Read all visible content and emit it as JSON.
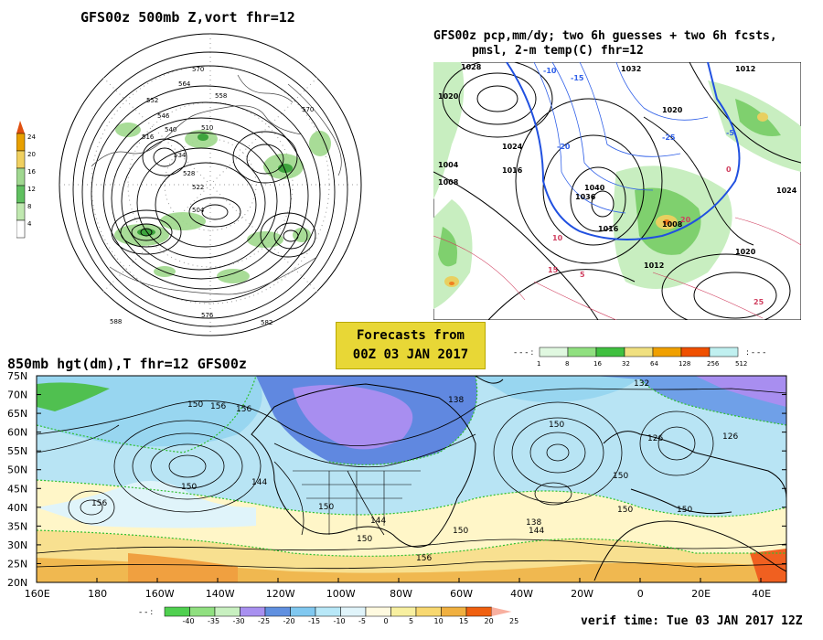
{
  "titles": {
    "nh_500mb": "GFS00z   500mb  Z,vort    fhr=12",
    "precip_line1": "GFS00z pcp,mm/dy; two 6h guesses + two 6h fcsts,",
    "precip_line2": "pmsl, 2-m temp(C)  fhr=12",
    "map_850": "850mb hgt(dm),T  fhr=12 GFS00z",
    "verif_time": "verif time: Tue 03 JAN 2017 12Z"
  },
  "forecast_box": {
    "line1": "Forecasts from",
    "line2": "00Z 03 JAN 2017"
  },
  "vort_scale": {
    "labels": [
      "24",
      "20",
      "16",
      "12",
      "8",
      "4"
    ],
    "colors": [
      "#e8a000",
      "#f0d060",
      "#a0d890",
      "#60c060",
      "#c0e8b0",
      "#ffffff"
    ]
  },
  "precip_scale": {
    "labels": [
      "1",
      "8",
      "16",
      "32",
      "64",
      "128",
      "256",
      "512"
    ],
    "colors": [
      "#e0f8e0",
      "#90e080",
      "#40c040",
      "#f0e080",
      "#f0a000",
      "#f05000",
      "#c0f0f0"
    ]
  },
  "temp_scale": {
    "labels": [
      "-40",
      "-35",
      "-30",
      "-25",
      "-20",
      "-15",
      "-10",
      "-5",
      "0",
      "5",
      "10",
      "15",
      "20",
      "25"
    ],
    "colors": [
      "#50d050",
      "#90e080",
      "#c8f0c0",
      "#a890f0",
      "#6090e0",
      "#80c8f0",
      "#b8e8f8",
      "#e0f4fa",
      "#fffae0",
      "#f8f0a0",
      "#f8d870",
      "#f0b040",
      "#f06010",
      "#f8b0a0"
    ]
  },
  "map_850": {
    "lat_labels": [
      "75N",
      "70N",
      "65N",
      "60N",
      "55N",
      "50N",
      "45N",
      "40N",
      "35N",
      "30N",
      "25N",
      "20N"
    ],
    "lon_labels": [
      "160E",
      "180",
      "160W",
      "140W",
      "120W",
      "100W",
      "80W",
      "60W",
      "40W",
      "20W",
      "0",
      "20E",
      "40E"
    ],
    "contour_labels": [
      "150",
      "150",
      "156",
      "144",
      "138",
      "150",
      "126",
      "126",
      "150",
      "150",
      "144",
      "150",
      "150",
      "138",
      "144",
      "150",
      "150",
      "156",
      "156",
      "132",
      "156"
    ]
  },
  "nh_labels": [
    "570",
    "564",
    "558",
    "552",
    "546",
    "540",
    "534",
    "528",
    "522",
    "516",
    "510",
    "504",
    "570",
    "576",
    "588",
    "582"
  ],
  "pcp_labels": [
    "1028",
    "1020",
    "1024",
    "1004",
    "1008",
    "1016",
    "1012",
    "1032",
    "1040",
    "1036",
    "1020",
    "1016",
    "1008",
    "1024",
    "1020",
    "1012",
    "-10",
    "-15",
    "-20",
    "-25",
    "-5",
    "10",
    "15",
    "20",
    "25",
    "5",
    "0"
  ]
}
